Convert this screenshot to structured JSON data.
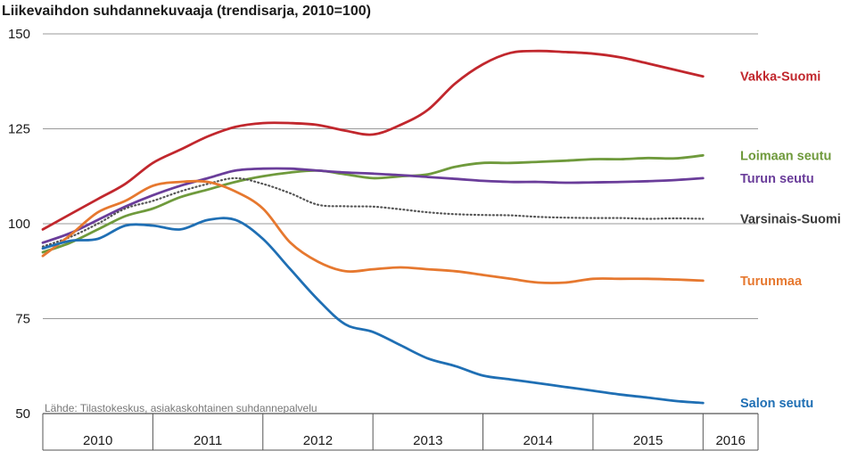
{
  "chart_data": {
    "type": "line",
    "title": "Liikevaihdon suhdannekuvaaja (trendisarja, 2010=100)",
    "source": "Lähde: Tilastokeskus, asiakaskohtainen suhdannepalvelu",
    "ylim": [
      50,
      150
    ],
    "yticks": [
      "150",
      "125",
      "100",
      "75",
      "50"
    ],
    "xlim": [
      2010.0,
      2016.5
    ],
    "year_labels": [
      "2010",
      "2011",
      "2012",
      "2013",
      "2014",
      "2015",
      "2016"
    ],
    "grid": true,
    "series": [
      {
        "name": "Vakka-Suomi",
        "color": "#c1272d",
        "dash": false,
        "points": [
          [
            2010.0,
            98.5
          ],
          [
            2010.25,
            102.5
          ],
          [
            2010.5,
            106.5
          ],
          [
            2010.75,
            110.5
          ],
          [
            2011.0,
            116
          ],
          [
            2011.25,
            119.5
          ],
          [
            2011.5,
            123
          ],
          [
            2011.75,
            125.5
          ],
          [
            2012.0,
            126.5
          ],
          [
            2012.25,
            126.5
          ],
          [
            2012.5,
            126
          ],
          [
            2012.75,
            124.5
          ],
          [
            2013.0,
            123.5
          ],
          [
            2013.25,
            126
          ],
          [
            2013.5,
            130
          ],
          [
            2013.75,
            137
          ],
          [
            2014.0,
            142
          ],
          [
            2014.25,
            145
          ],
          [
            2014.5,
            145.5
          ],
          [
            2014.75,
            145.2
          ],
          [
            2015.0,
            144.8
          ],
          [
            2015.25,
            143.8
          ],
          [
            2015.5,
            142.2
          ],
          [
            2015.75,
            140.5
          ],
          [
            2016.0,
            138.8
          ]
        ]
      },
      {
        "name": "Loimaan seutu",
        "color": "#6f9a3c",
        "dash": false,
        "points": [
          [
            2010.0,
            92.5
          ],
          [
            2010.25,
            95
          ],
          [
            2010.5,
            98.5
          ],
          [
            2010.75,
            102
          ],
          [
            2011.0,
            104
          ],
          [
            2011.25,
            107
          ],
          [
            2011.5,
            109
          ],
          [
            2011.75,
            111
          ],
          [
            2012.0,
            112.5
          ],
          [
            2012.25,
            113.5
          ],
          [
            2012.5,
            114
          ],
          [
            2012.75,
            113
          ],
          [
            2013.0,
            112
          ],
          [
            2013.25,
            112.5
          ],
          [
            2013.5,
            113
          ],
          [
            2013.75,
            115
          ],
          [
            2014.0,
            116
          ],
          [
            2014.25,
            116
          ],
          [
            2014.5,
            116.3
          ],
          [
            2014.75,
            116.6
          ],
          [
            2015.0,
            117
          ],
          [
            2015.25,
            117
          ],
          [
            2015.5,
            117.3
          ],
          [
            2015.75,
            117.2
          ],
          [
            2016.0,
            118
          ]
        ]
      },
      {
        "name": "Turun seutu",
        "color": "#6a3d9a",
        "dash": false,
        "points": [
          [
            2010.0,
            95
          ],
          [
            2010.25,
            97.5
          ],
          [
            2010.5,
            101
          ],
          [
            2010.75,
            104.5
          ],
          [
            2011.0,
            107.5
          ],
          [
            2011.25,
            110
          ],
          [
            2011.5,
            112
          ],
          [
            2011.75,
            114
          ],
          [
            2012.0,
            114.5
          ],
          [
            2012.25,
            114.5
          ],
          [
            2012.5,
            114
          ],
          [
            2012.75,
            113.5
          ],
          [
            2013.0,
            113.2
          ],
          [
            2013.25,
            112.8
          ],
          [
            2013.5,
            112.3
          ],
          [
            2013.75,
            111.8
          ],
          [
            2014.0,
            111.3
          ],
          [
            2014.25,
            111
          ],
          [
            2014.5,
            111
          ],
          [
            2014.75,
            110.8
          ],
          [
            2015.0,
            110.9
          ],
          [
            2015.25,
            111
          ],
          [
            2015.5,
            111.2
          ],
          [
            2015.75,
            111.5
          ],
          [
            2016.0,
            112
          ]
        ]
      },
      {
        "name": "Varsinais-Suomi",
        "color": "#555555",
        "dash": true,
        "points": [
          [
            2010.0,
            94
          ],
          [
            2010.25,
            96.5
          ],
          [
            2010.5,
            100
          ],
          [
            2010.75,
            104
          ],
          [
            2011.0,
            106
          ],
          [
            2011.25,
            108.5
          ],
          [
            2011.5,
            110.5
          ],
          [
            2011.75,
            112
          ],
          [
            2012.0,
            110.5
          ],
          [
            2012.25,
            108
          ],
          [
            2012.5,
            105
          ],
          [
            2012.75,
            104.6
          ],
          [
            2013.0,
            104.5
          ],
          [
            2013.25,
            103.8
          ],
          [
            2013.5,
            103
          ],
          [
            2013.75,
            102.5
          ],
          [
            2014.0,
            102.3
          ],
          [
            2014.25,
            102.2
          ],
          [
            2014.5,
            101.8
          ],
          [
            2014.75,
            101.6
          ],
          [
            2015.0,
            101.5
          ],
          [
            2015.25,
            101.5
          ],
          [
            2015.5,
            101.3
          ],
          [
            2015.75,
            101.4
          ],
          [
            2016.0,
            101.3
          ]
        ]
      },
      {
        "name": "Turunmaa",
        "color": "#e6782f",
        "dash": false,
        "points": [
          [
            2010.0,
            91.5
          ],
          [
            2010.25,
            97
          ],
          [
            2010.5,
            103
          ],
          [
            2010.75,
            106
          ],
          [
            2011.0,
            110
          ],
          [
            2011.25,
            111
          ],
          [
            2011.5,
            111
          ],
          [
            2011.75,
            108.5
          ],
          [
            2012.0,
            104
          ],
          [
            2012.25,
            95
          ],
          [
            2012.5,
            90
          ],
          [
            2012.75,
            87.5
          ],
          [
            2013.0,
            88
          ],
          [
            2013.25,
            88.5
          ],
          [
            2013.5,
            88
          ],
          [
            2013.75,
            87.5
          ],
          [
            2014.0,
            86.5
          ],
          [
            2014.25,
            85.5
          ],
          [
            2014.5,
            84.5
          ],
          [
            2014.75,
            84.5
          ],
          [
            2015.0,
            85.5
          ],
          [
            2015.25,
            85.5
          ],
          [
            2015.5,
            85.5
          ],
          [
            2015.75,
            85.3
          ],
          [
            2016.0,
            85
          ]
        ]
      },
      {
        "name": "Salon seutu",
        "color": "#1f6fb4",
        "dash": false,
        "points": [
          [
            2010.0,
            93.5
          ],
          [
            2010.25,
            95.5
          ],
          [
            2010.5,
            96
          ],
          [
            2010.75,
            99.5
          ],
          [
            2011.0,
            99.5
          ],
          [
            2011.25,
            98.5
          ],
          [
            2011.5,
            101
          ],
          [
            2011.75,
            101
          ],
          [
            2012.0,
            96
          ],
          [
            2012.25,
            88
          ],
          [
            2012.5,
            80
          ],
          [
            2012.75,
            73.5
          ],
          [
            2013.0,
            71.5
          ],
          [
            2013.25,
            68
          ],
          [
            2013.5,
            64.5
          ],
          [
            2013.75,
            62.5
          ],
          [
            2014.0,
            60
          ],
          [
            2014.25,
            59
          ],
          [
            2014.5,
            58
          ],
          [
            2014.75,
            57
          ],
          [
            2015.0,
            56
          ],
          [
            2015.25,
            55
          ],
          [
            2015.5,
            54.2
          ],
          [
            2015.75,
            53.3
          ],
          [
            2016.0,
            52.8
          ]
        ]
      }
    ]
  }
}
